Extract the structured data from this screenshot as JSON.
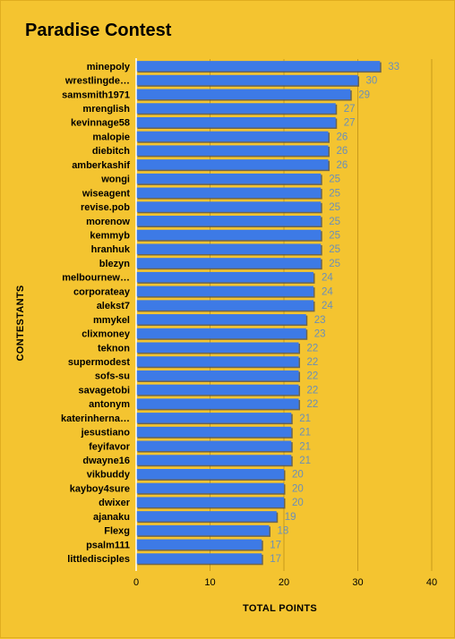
{
  "chart_data": {
    "type": "bar",
    "orientation": "horizontal",
    "title": "Paradise Contest",
    "xlabel": "TOTAL POINTS",
    "ylabel": "CONTESTANTS",
    "xlim": [
      0,
      40
    ],
    "xticks": [
      0,
      10,
      20,
      30,
      40
    ],
    "grid": true,
    "categories": [
      "minepoly",
      "wrestlingde…",
      "samsmith1971",
      "mrenglish",
      "kevinnage58",
      "malopie",
      "diebitch",
      "amberkashif",
      "wongi",
      "wiseagent",
      "revise.pob",
      "morenow",
      "kemmyb",
      "hranhuk",
      "blezyn",
      "melbournew…",
      "corporateay",
      "alekst7",
      "mmykel",
      "clixmoney",
      "teknon",
      "supermodest",
      "sofs-su",
      "savagetobi",
      "antonym",
      "katerinherna…",
      "jesustiano",
      "feyifavor",
      "dwayne16",
      "vikbuddy",
      "kayboy4sure",
      "dwixer",
      "ajanaku",
      "Flexg",
      "psalm111",
      "littledisciples"
    ],
    "values": [
      33,
      30,
      29,
      27,
      27,
      26,
      26,
      26,
      25,
      25,
      25,
      25,
      25,
      25,
      25,
      24,
      24,
      24,
      23,
      23,
      22,
      22,
      22,
      22,
      22,
      21,
      21,
      21,
      21,
      20,
      20,
      20,
      19,
      18,
      17,
      17
    ],
    "colors": {
      "bar": "#3d7ae6",
      "bar_shadow": "#555555",
      "value_label": "#6a8fb8",
      "grid": "#c99a1a",
      "background": "#f4c430"
    }
  }
}
